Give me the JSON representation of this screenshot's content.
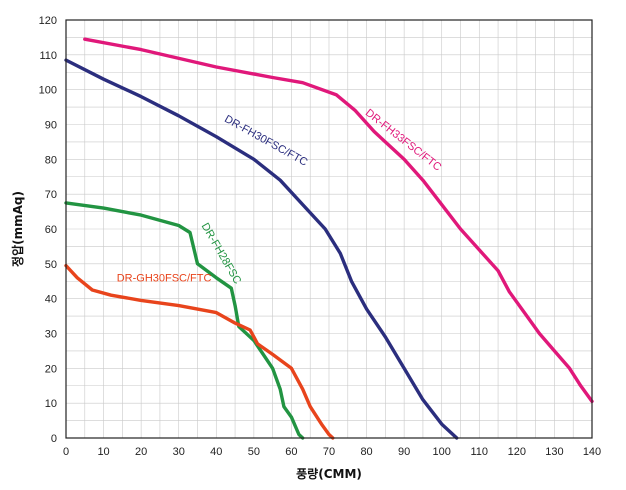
{
  "chart_data": {
    "type": "line",
    "title": "",
    "xlabel": "풍량(CMM)",
    "ylabel": "정압(mmAq)",
    "xlim": [
      0,
      140
    ],
    "ylim": [
      0,
      120
    ],
    "x_ticks": [
      0,
      10,
      20,
      30,
      40,
      50,
      60,
      70,
      80,
      90,
      100,
      110,
      120,
      130,
      140
    ],
    "y_ticks": [
      0,
      10,
      20,
      30,
      40,
      50,
      60,
      70,
      80,
      90,
      100,
      110,
      120
    ],
    "x_minor_step": 5,
    "y_minor_step": 5,
    "grid": true,
    "series": [
      {
        "name": "DR-FH33FSC/FTC",
        "color": "#e0187a",
        "points": [
          [
            5,
            114.5
          ],
          [
            20,
            111.5
          ],
          [
            40,
            106.5
          ],
          [
            55,
            103.5
          ],
          [
            63,
            102
          ],
          [
            72,
            98.5
          ],
          [
            77,
            94
          ],
          [
            82,
            88
          ],
          [
            90,
            80
          ],
          [
            95,
            74
          ],
          [
            100,
            67
          ],
          [
            105,
            60
          ],
          [
            110,
            54
          ],
          [
            115,
            48
          ],
          [
            118,
            42
          ],
          [
            122,
            36
          ],
          [
            126,
            30
          ],
          [
            130,
            25
          ],
          [
            134,
            20
          ],
          [
            137,
            15
          ],
          [
            140,
            10.5
          ]
        ]
      },
      {
        "name": "DR-FH30FSC/FTC",
        "color": "#2b2e7e",
        "points": [
          [
            0,
            108.5
          ],
          [
            10,
            103
          ],
          [
            20,
            98
          ],
          [
            30,
            92.5
          ],
          [
            40,
            86.5
          ],
          [
            50,
            80
          ],
          [
            57,
            74
          ],
          [
            63,
            67
          ],
          [
            69,
            60
          ],
          [
            73,
            53
          ],
          [
            76,
            45
          ],
          [
            80,
            37
          ],
          [
            85,
            29
          ],
          [
            90,
            20
          ],
          [
            95,
            11
          ],
          [
            100,
            4
          ],
          [
            104,
            0
          ]
        ]
      },
      {
        "name": "DR-FH28FSC",
        "color": "#229442",
        "points": [
          [
            0,
            67.5
          ],
          [
            10,
            66
          ],
          [
            20,
            64
          ],
          [
            30,
            61
          ],
          [
            33,
            59
          ],
          [
            35,
            50
          ],
          [
            40,
            46
          ],
          [
            44,
            43
          ],
          [
            45,
            38
          ],
          [
            46,
            32
          ],
          [
            50,
            28
          ],
          [
            55,
            20
          ],
          [
            57,
            14
          ],
          [
            58,
            9
          ],
          [
            60,
            6
          ],
          [
            62,
            1
          ],
          [
            63,
            0
          ]
        ]
      },
      {
        "name": "DR-GH30FSC/FTC",
        "color": "#e8441c",
        "points": [
          [
            0,
            49.5
          ],
          [
            3,
            46
          ],
          [
            7,
            42.5
          ],
          [
            12,
            41
          ],
          [
            20,
            39.5
          ],
          [
            30,
            38
          ],
          [
            40,
            36
          ],
          [
            45,
            33
          ],
          [
            49,
            31
          ],
          [
            51,
            27
          ],
          [
            55,
            24
          ],
          [
            60,
            20
          ],
          [
            63,
            14
          ],
          [
            65,
            9
          ],
          [
            68,
            4
          ],
          [
            70,
            1
          ],
          [
            71,
            0
          ]
        ]
      }
    ],
    "series_labels": [
      {
        "text": "DR-FH33FSC/FTC",
        "series": "DR-FH33FSC/FTC",
        "anchor": [
          79.5,
          93
        ],
        "rotation": 38
      },
      {
        "text": "DR-FH30FSC/FTC",
        "series": "DR-FH30FSC/FTC",
        "anchor": [
          42,
          91
        ],
        "rotation": 29
      },
      {
        "text": "DR-FH28FSC",
        "series": "DR-FH28FSC",
        "anchor": [
          36,
          61
        ],
        "rotation": 60
      },
      {
        "text": "DR-GH30FSC/FTC",
        "series": "DR-GH30FSC/FTC",
        "anchor": [
          13.5,
          45
        ],
        "rotation": 0
      }
    ]
  }
}
